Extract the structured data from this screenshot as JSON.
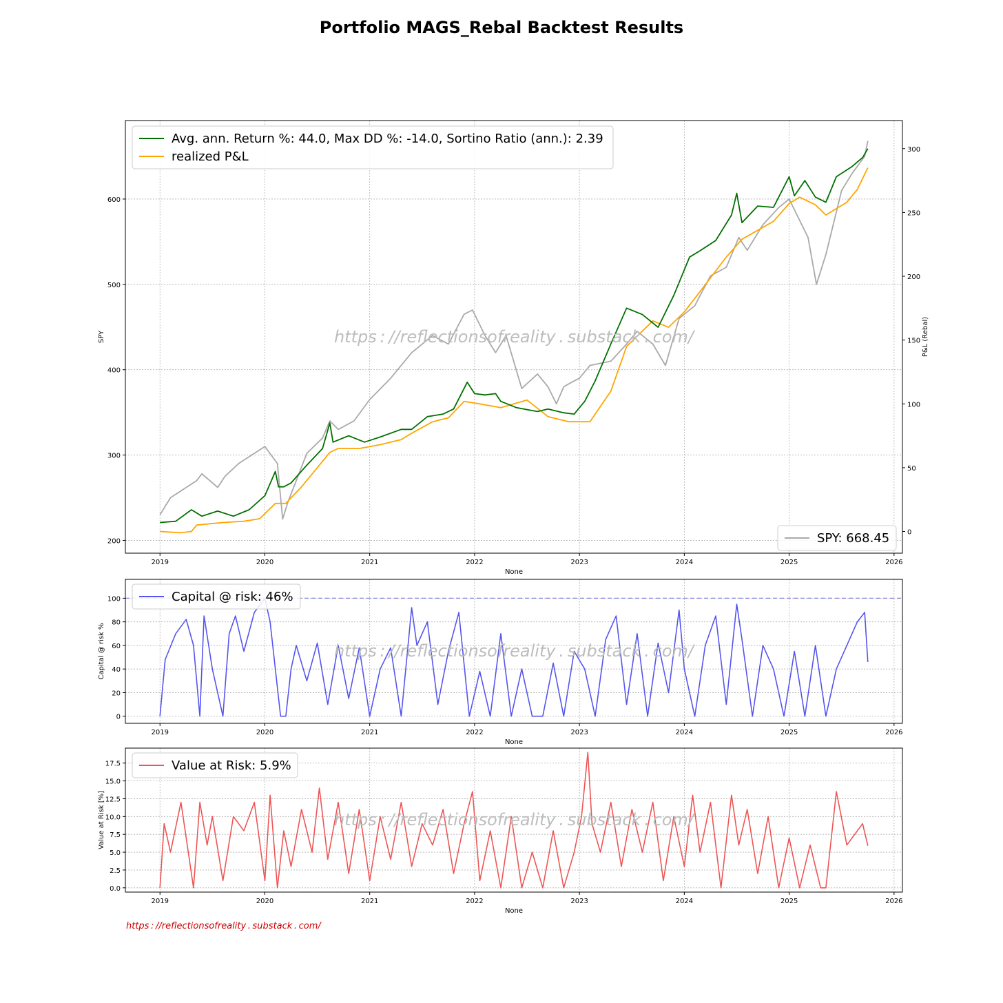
{
  "figure": {
    "title": "Portfolio MAGS_Rebal Backtest Results",
    "watermark": "https : //reflectionsofreality . substack . com/",
    "footer": "https : //reflectionsofreality . substack . com/",
    "colors": {
      "strategy": "#007000",
      "realized": "#ffa500",
      "spy": "#a9a9a9",
      "capital": "#5555ee",
      "var": "#ee5555",
      "reference": "#8080e0",
      "footer": "#cc0000"
    }
  },
  "chart_data": [
    {
      "id": "main",
      "type": "line",
      "xlabel": "None",
      "ylabel_left": "SPY",
      "ylabel_right": "P&L (Rebal)",
      "xlim": [
        2018.67,
        2026.08
      ],
      "x_ticks": [
        2019,
        2020,
        2021,
        2022,
        2023,
        2024,
        2025,
        2026
      ],
      "ylim_left": [
        185,
        692
      ],
      "y_ticks_left": [
        200,
        300,
        400,
        500,
        600
      ],
      "ylim_right": [
        -17,
        322
      ],
      "y_ticks_right": [
        0,
        50,
        100,
        150,
        200,
        250,
        300
      ],
      "grid": true,
      "legend_upper": {
        "placement": "top-left",
        "entries": [
          "Avg. ann. Return %: 44.0, Max DD %: -14.0, Sortino Ratio (ann.): 2.39",
          "realized P&L"
        ]
      },
      "legend_lower": {
        "placement": "bottom-right",
        "entries": [
          "SPY: 668.45"
        ]
      },
      "series": [
        {
          "name": "Avg. ann. Return %: 44.0, Max DD %: -14.0, Sortino Ratio (ann.): 2.39",
          "axis": "right",
          "x": [
            2019.0,
            2019.15,
            2019.3,
            2019.4,
            2019.55,
            2019.7,
            2019.85,
            2020.0,
            2020.1,
            2020.13,
            2020.18,
            2020.25,
            2020.4,
            2020.55,
            2020.62,
            2020.65,
            2020.8,
            2020.95,
            2021.1,
            2021.3,
            2021.4,
            2021.55,
            2021.7,
            2021.8,
            2021.93,
            2022.0,
            2022.1,
            2022.2,
            2022.25,
            2022.4,
            2022.6,
            2022.7,
            2022.85,
            2022.95,
            2023.05,
            2023.15,
            2023.3,
            2023.45,
            2023.6,
            2023.75,
            2023.9,
            2024.05,
            2024.15,
            2024.3,
            2024.45,
            2024.5,
            2024.55,
            2024.7,
            2024.85,
            2025.0,
            2025.05,
            2025.15,
            2025.25,
            2025.35,
            2025.45,
            2025.6,
            2025.7,
            2025.75
          ],
          "y": [
            7,
            8,
            17,
            12,
            16,
            12,
            17,
            28,
            47,
            35,
            35,
            38,
            52,
            65,
            85,
            70,
            75,
            70,
            74,
            80,
            80,
            90,
            92,
            96,
            117,
            108,
            107,
            108,
            102,
            97,
            94,
            96,
            93,
            92,
            102,
            118,
            147,
            175,
            170,
            160,
            185,
            215,
            220,
            228,
            248,
            265,
            242,
            255,
            254,
            278,
            263,
            275,
            262,
            258,
            278,
            286,
            293,
            300
          ]
        },
        {
          "name": "realized P&L",
          "axis": "right",
          "x": [
            2019.0,
            2019.2,
            2019.3,
            2019.35,
            2019.6,
            2019.8,
            2019.95,
            2020.1,
            2020.2,
            2020.35,
            2020.5,
            2020.62,
            2020.7,
            2020.9,
            2021.1,
            2021.3,
            2021.4,
            2021.6,
            2021.75,
            2021.9,
            2022.05,
            2022.25,
            2022.5,
            2022.7,
            2022.9,
            2023.1,
            2023.3,
            2023.45,
            2023.7,
            2023.85,
            2024.0,
            2024.15,
            2024.4,
            2024.55,
            2024.7,
            2024.85,
            2025.0,
            2025.1,
            2025.25,
            2025.35,
            2025.55,
            2025.65,
            2025.75
          ],
          "y": [
            0,
            -1,
            0,
            5,
            7,
            8,
            10,
            22,
            22,
            35,
            50,
            62,
            65,
            65,
            68,
            72,
            77,
            86,
            89,
            102,
            100,
            97,
            103,
            90,
            86,
            86,
            110,
            145,
            165,
            160,
            172,
            188,
            215,
            229,
            236,
            243,
            257,
            262,
            256,
            248,
            258,
            268,
            285
          ]
        },
        {
          "name": "SPY: 668.45",
          "axis": "left",
          "x": [
            2019.0,
            2019.1,
            2019.25,
            2019.35,
            2019.4,
            2019.55,
            2019.62,
            2019.75,
            2020.0,
            2020.12,
            2020.17,
            2020.22,
            2020.3,
            2020.4,
            2020.55,
            2020.62,
            2020.7,
            2020.85,
            2021.0,
            2021.2,
            2021.4,
            2021.6,
            2021.75,
            2021.9,
            2021.98,
            2022.1,
            2022.2,
            2022.3,
            2022.45,
            2022.6,
            2022.7,
            2022.78,
            2022.85,
            2022.92,
            2023.0,
            2023.1,
            2023.3,
            2023.45,
            2023.55,
            2023.7,
            2023.82,
            2023.95,
            2024.1,
            2024.25,
            2024.4,
            2024.52,
            2024.6,
            2024.75,
            2024.9,
            2025.0,
            2025.1,
            2025.18,
            2025.26,
            2025.35,
            2025.5,
            2025.6,
            2025.72,
            2025.75
          ],
          "y": [
            230,
            250,
            262,
            270,
            278,
            262,
            275,
            290,
            310,
            290,
            225,
            245,
            270,
            302,
            320,
            340,
            330,
            340,
            365,
            390,
            420,
            440,
            430,
            465,
            470,
            440,
            420,
            440,
            378,
            395,
            380,
            360,
            380,
            385,
            390,
            405,
            410,
            430,
            445,
            430,
            405,
            460,
            475,
            510,
            520,
            555,
            540,
            570,
            590,
            600,
            575,
            555,
            500,
            535,
            610,
            630,
            650,
            668
          ]
        }
      ]
    },
    {
      "id": "capital",
      "type": "line",
      "xlabel": "None",
      "ylabel": "Capital @ risk %",
      "xlim": [
        2018.67,
        2026.08
      ],
      "x_ticks": [
        2019,
        2020,
        2021,
        2022,
        2023,
        2024,
        2025,
        2026
      ],
      "ylim": [
        -6,
        116
      ],
      "y_ticks": [
        0,
        20,
        40,
        60,
        80,
        100
      ],
      "reference_line": 100,
      "grid": true,
      "legend": {
        "placement": "top-left",
        "entries": [
          "Capital @ risk: 46%"
        ]
      },
      "series": [
        {
          "name": "Capital @ risk: 46%",
          "x": [
            2019.0,
            2019.05,
            2019.15,
            2019.25,
            2019.32,
            2019.38,
            2019.42,
            2019.5,
            2019.6,
            2019.66,
            2019.72,
            2019.8,
            2019.9,
            2020.0,
            2020.05,
            2020.1,
            2020.15,
            2020.2,
            2020.25,
            2020.3,
            2020.4,
            2020.5,
            2020.6,
            2020.7,
            2020.8,
            2020.9,
            2021.0,
            2021.1,
            2021.2,
            2021.3,
            2021.4,
            2021.45,
            2021.55,
            2021.65,
            2021.75,
            2021.85,
            2021.95,
            2022.05,
            2022.15,
            2022.25,
            2022.35,
            2022.45,
            2022.55,
            2022.65,
            2022.75,
            2022.85,
            2022.95,
            2023.05,
            2023.15,
            2023.25,
            2023.35,
            2023.45,
            2023.55,
            2023.65,
            2023.75,
            2023.85,
            2023.95,
            2024.0,
            2024.1,
            2024.2,
            2024.3,
            2024.4,
            2024.5,
            2024.55,
            2024.65,
            2024.75,
            2024.85,
            2024.95,
            2025.05,
            2025.15,
            2025.25,
            2025.35,
            2025.45,
            2025.55,
            2025.65,
            2025.72,
            2025.75
          ],
          "y": [
            0,
            48,
            70,
            82,
            60,
            0,
            85,
            40,
            0,
            70,
            85,
            55,
            88,
            100,
            80,
            40,
            0,
            0,
            40,
            60,
            30,
            62,
            10,
            60,
            15,
            58,
            0,
            40,
            58,
            0,
            92,
            60,
            80,
            10,
            55,
            88,
            0,
            38,
            0,
            70,
            0,
            40,
            0,
            0,
            45,
            0,
            55,
            40,
            0,
            65,
            85,
            10,
            70,
            0,
            62,
            20,
            90,
            40,
            0,
            60,
            85,
            10,
            95,
            65,
            0,
            60,
            40,
            0,
            55,
            0,
            60,
            0,
            40,
            60,
            80,
            88,
            46
          ]
        }
      ]
    },
    {
      "id": "var",
      "type": "line",
      "xlabel": "None",
      "ylabel": "Value at Risk [%]",
      "xlim": [
        2018.67,
        2026.08
      ],
      "x_ticks": [
        2019,
        2020,
        2021,
        2022,
        2023,
        2024,
        2025,
        2026
      ],
      "ylim": [
        -0.6,
        19.6
      ],
      "y_ticks": [
        "0.0",
        "2.5",
        "5.0",
        "7.5",
        "10.0",
        "12.5",
        "15.0",
        "17.5"
      ],
      "grid": true,
      "legend": {
        "placement": "top-left",
        "entries": [
          "Value at Risk: 5.9%"
        ]
      },
      "series": [
        {
          "name": "Value at Risk: 5.9%",
          "x": [
            2019.0,
            2019.04,
            2019.1,
            2019.2,
            2019.25,
            2019.32,
            2019.38,
            2019.45,
            2019.5,
            2019.6,
            2019.7,
            2019.8,
            2019.9,
            2020.0,
            2020.05,
            2020.12,
            2020.18,
            2020.25,
            2020.35,
            2020.45,
            2020.52,
            2020.6,
            2020.7,
            2020.8,
            2020.9,
            2021.0,
            2021.1,
            2021.2,
            2021.3,
            2021.4,
            2021.5,
            2021.6,
            2021.7,
            2021.8,
            2021.9,
            2021.98,
            2022.05,
            2022.15,
            2022.25,
            2022.35,
            2022.45,
            2022.55,
            2022.65,
            2022.75,
            2022.85,
            2022.95,
            2023.02,
            2023.08,
            2023.12,
            2023.2,
            2023.3,
            2023.4,
            2023.5,
            2023.6,
            2023.7,
            2023.8,
            2023.9,
            2024.0,
            2024.08,
            2024.15,
            2024.25,
            2024.35,
            2024.45,
            2024.52,
            2024.6,
            2024.7,
            2024.8,
            2024.9,
            2025.0,
            2025.1,
            2025.2,
            2025.3,
            2025.35,
            2025.45,
            2025.55,
            2025.6,
            2025.7,
            2025.75
          ],
          "y": [
            0,
            9,
            5,
            12,
            7,
            0,
            12,
            6,
            10,
            1,
            10,
            8,
            12,
            1,
            13,
            0,
            8,
            3,
            11,
            5,
            14,
            4,
            12,
            2,
            11,
            1,
            10,
            4,
            12,
            3,
            9,
            6,
            11,
            2,
            9,
            13.5,
            1,
            8,
            0,
            10,
            0,
            5,
            0,
            8,
            0,
            5,
            10,
            19,
            9,
            5,
            12,
            3,
            11,
            5,
            12,
            1,
            10,
            3,
            13,
            5,
            12,
            0,
            13,
            6,
            11,
            2,
            10,
            0,
            7,
            0,
            6,
            0,
            0,
            13.5,
            6,
            7,
            9,
            5.9
          ]
        }
      ]
    }
  ]
}
